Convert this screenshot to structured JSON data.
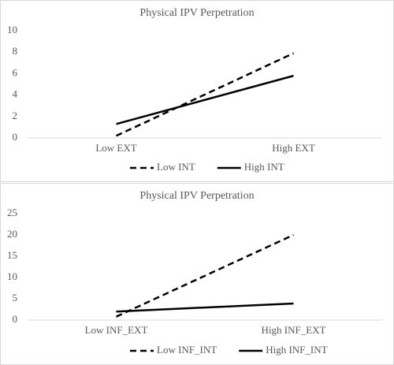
{
  "chart_data": [
    {
      "type": "line",
      "title": "Physical IPV Perpetration",
      "categories": [
        "Low EXT",
        "High EXT"
      ],
      "series": [
        {
          "name": "Low INT",
          "color": "#000000",
          "dashed": true,
          "values": [
            0.2,
            7.9
          ]
        },
        {
          "name": "High INT",
          "color": "#000000",
          "dashed": false,
          "values": [
            1.3,
            5.8
          ]
        }
      ],
      "ylim": [
        0,
        10
      ],
      "yticks": [
        0,
        2,
        4,
        6,
        8,
        10
      ],
      "legend": "bottom"
    },
    {
      "type": "line",
      "title": "Physical IPV Perpetration",
      "categories": [
        "Low INF_EXT",
        "High INF_EXT"
      ],
      "series": [
        {
          "name": "Low INF_INT",
          "color": "#000000",
          "dashed": true,
          "values": [
            0.8,
            20
          ]
        },
        {
          "name": "High INF_INT",
          "color": "#000000",
          "dashed": false,
          "values": [
            2,
            3.9
          ]
        }
      ],
      "ylim": [
        0,
        25
      ],
      "yticks": [
        0,
        5,
        10,
        15,
        20,
        25
      ],
      "legend": "bottom"
    }
  ]
}
